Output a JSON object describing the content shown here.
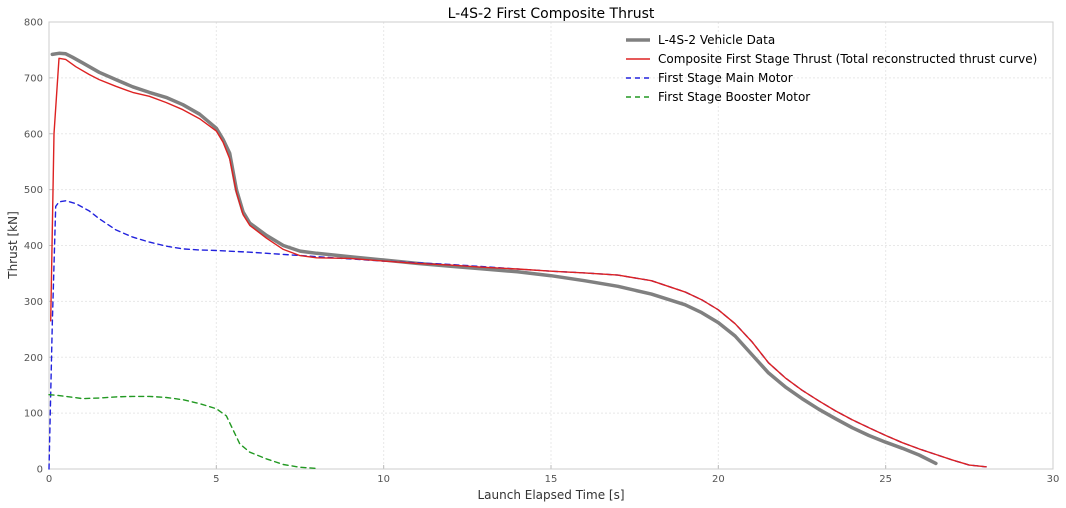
{
  "chart_data": {
    "type": "line",
    "title": "L-4S-2 First Composite Thrust",
    "xlabel": "Launch Elapsed Time [s]",
    "ylabel": "Thrust [kN]",
    "xlim": [
      0,
      30
    ],
    "ylim": [
      0,
      800
    ],
    "xticks": [
      0,
      5,
      10,
      15,
      20,
      25,
      30
    ],
    "yticks": [
      0,
      100,
      200,
      300,
      400,
      500,
      600,
      700,
      800
    ],
    "grid": true,
    "legend_position": "top-right",
    "series": [
      {
        "name": "L-4S-2 Vehicle Data",
        "color": "#808080",
        "style": "solid",
        "width": "thick",
        "points": [
          [
            0.1,
            742
          ],
          [
            0.3,
            744
          ],
          [
            0.5,
            743
          ],
          [
            0.7,
            737
          ],
          [
            1,
            727
          ],
          [
            1.5,
            710
          ],
          [
            2,
            697
          ],
          [
            2.5,
            684
          ],
          [
            3,
            674
          ],
          [
            3.5,
            665
          ],
          [
            4,
            652
          ],
          [
            4.5,
            635
          ],
          [
            5,
            610
          ],
          [
            5.2,
            590
          ],
          [
            5.4,
            565
          ],
          [
            5.6,
            500
          ],
          [
            5.8,
            460
          ],
          [
            6,
            440
          ],
          [
            6.5,
            418
          ],
          [
            7,
            400
          ],
          [
            7.5,
            390
          ],
          [
            8,
            386
          ],
          [
            9,
            380
          ],
          [
            10,
            374
          ],
          [
            11,
            368
          ],
          [
            12,
            363
          ],
          [
            13,
            358
          ],
          [
            14,
            353
          ],
          [
            15,
            346
          ],
          [
            16,
            337
          ],
          [
            17,
            327
          ],
          [
            18,
            313
          ],
          [
            19,
            294
          ],
          [
            19.5,
            280
          ],
          [
            20,
            262
          ],
          [
            20.5,
            238
          ],
          [
            21,
            205
          ],
          [
            21.5,
            172
          ],
          [
            22,
            147
          ],
          [
            22.5,
            126
          ],
          [
            23,
            107
          ],
          [
            23.5,
            90
          ],
          [
            24,
            74
          ],
          [
            24.5,
            60
          ],
          [
            25,
            48
          ],
          [
            25.5,
            37
          ],
          [
            26,
            25
          ],
          [
            26.5,
            10
          ]
        ]
      },
      {
        "name": "Composite First Stage Thrust (Total reconstructed thrust curve)",
        "color": "#dd2222",
        "style": "solid",
        "width": "normal",
        "points": [
          [
            0.05,
            265
          ],
          [
            0.15,
            600
          ],
          [
            0.3,
            735
          ],
          [
            0.5,
            733
          ],
          [
            0.8,
            720
          ],
          [
            1.2,
            706
          ],
          [
            1.5,
            697
          ],
          [
            2,
            685
          ],
          [
            2.5,
            674
          ],
          [
            3,
            667
          ],
          [
            3.5,
            656
          ],
          [
            4,
            643
          ],
          [
            4.5,
            627
          ],
          [
            5,
            605
          ],
          [
            5.2,
            585
          ],
          [
            5.4,
            555
          ],
          [
            5.6,
            495
          ],
          [
            5.8,
            455
          ],
          [
            6,
            436
          ],
          [
            6.5,
            413
          ],
          [
            7,
            393
          ],
          [
            7.5,
            382
          ],
          [
            8,
            378
          ],
          [
            9,
            377
          ],
          [
            10,
            372
          ],
          [
            11,
            368
          ],
          [
            12,
            365
          ],
          [
            13,
            361
          ],
          [
            14,
            358
          ],
          [
            15,
            354
          ],
          [
            16,
            351
          ],
          [
            17,
            347
          ],
          [
            18,
            337
          ],
          [
            19,
            317
          ],
          [
            19.5,
            303
          ],
          [
            20,
            285
          ],
          [
            20.5,
            260
          ],
          [
            21,
            228
          ],
          [
            21.5,
            190
          ],
          [
            22,
            163
          ],
          [
            22.5,
            141
          ],
          [
            23,
            122
          ],
          [
            23.5,
            104
          ],
          [
            24,
            88
          ],
          [
            24.5,
            74
          ],
          [
            25,
            60
          ],
          [
            25.5,
            47
          ],
          [
            26,
            36
          ],
          [
            26.5,
            26
          ],
          [
            27,
            16
          ],
          [
            27.5,
            7
          ],
          [
            28,
            4
          ]
        ]
      },
      {
        "name": "First Stage Main Motor",
        "color": "#2222dd",
        "style": "dashed",
        "width": "normal",
        "points": [
          [
            0.0,
            0
          ],
          [
            0.1,
            260
          ],
          [
            0.2,
            470
          ],
          [
            0.3,
            478
          ],
          [
            0.5,
            480
          ],
          [
            0.8,
            475
          ],
          [
            1.2,
            462
          ],
          [
            1.5,
            448
          ],
          [
            2,
            428
          ],
          [
            2.5,
            415
          ],
          [
            3,
            406
          ],
          [
            3.5,
            399
          ],
          [
            4,
            394
          ],
          [
            4.5,
            392
          ],
          [
            5,
            391
          ],
          [
            6,
            388
          ],
          [
            7,
            384
          ],
          [
            8,
            380
          ],
          [
            9,
            376
          ],
          [
            10,
            372
          ],
          [
            11,
            369
          ],
          [
            12,
            366
          ],
          [
            13,
            362
          ],
          [
            14,
            358
          ],
          [
            15,
            354
          ],
          [
            16,
            351
          ],
          [
            17,
            347
          ],
          [
            18,
            337
          ],
          [
            19,
            317
          ],
          [
            19.5,
            303
          ],
          [
            20,
            285
          ],
          [
            20.5,
            260
          ],
          [
            21,
            228
          ],
          [
            21.5,
            190
          ],
          [
            22,
            163
          ],
          [
            22.5,
            141
          ],
          [
            23,
            122
          ],
          [
            23.5,
            104
          ],
          [
            24,
            88
          ],
          [
            24.5,
            74
          ],
          [
            25,
            60
          ],
          [
            25.5,
            47
          ],
          [
            26,
            36
          ],
          [
            26.5,
            26
          ],
          [
            27,
            16
          ],
          [
            27.5,
            7
          ],
          [
            28,
            4
          ]
        ]
      },
      {
        "name": "First Stage Booster Motor",
        "color": "#229922",
        "style": "dashed",
        "width": "normal",
        "points": [
          [
            0.0,
            133
          ],
          [
            0.2,
            132
          ],
          [
            0.5,
            130
          ],
          [
            1,
            126
          ],
          [
            1.5,
            127
          ],
          [
            2,
            129
          ],
          [
            2.5,
            130
          ],
          [
            3,
            130
          ],
          [
            3.5,
            128
          ],
          [
            4,
            124
          ],
          [
            4.5,
            117
          ],
          [
            5,
            108
          ],
          [
            5.3,
            95
          ],
          [
            5.5,
            70
          ],
          [
            5.7,
            45
          ],
          [
            6,
            30
          ],
          [
            6.5,
            18
          ],
          [
            7,
            8
          ],
          [
            7.5,
            3
          ],
          [
            8,
            1
          ]
        ]
      }
    ]
  }
}
